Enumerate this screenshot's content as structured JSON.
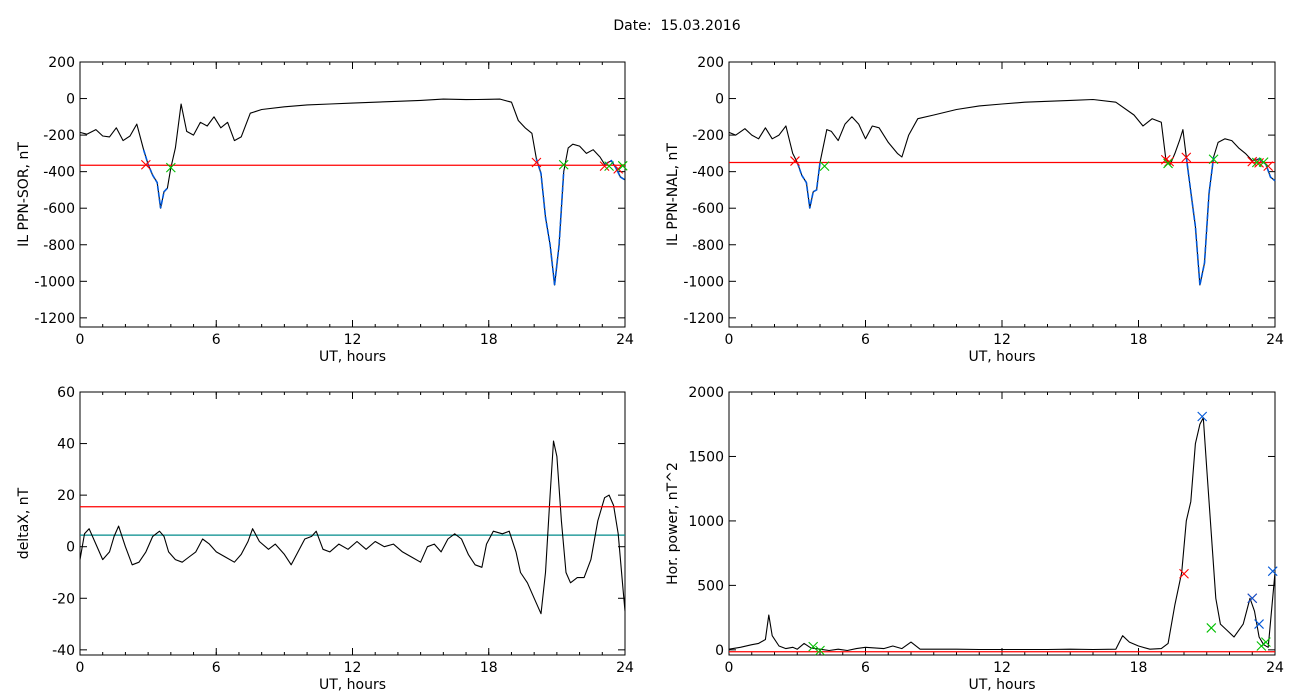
{
  "figure": {
    "date_label": "Date:",
    "date_value": "15.03.2016"
  },
  "colors": {
    "trace": "#000000",
    "threshold": "#ff0000",
    "event": "#0057d8",
    "start_marker": "#ff0000",
    "end_marker": "#00c000",
    "peak_marker": "#0057d8",
    "mean_line": "#008b8b"
  },
  "chart_data": [
    {
      "id": "il_sor",
      "type": "line",
      "xlabel": "UT, hours",
      "ylabel": "IL PPN-SOR, nT",
      "xlim": [
        0,
        24
      ],
      "ylim": [
        -1250,
        200
      ],
      "xticks": [
        "0",
        "6",
        "12",
        "18",
        "24"
      ],
      "yticks": [
        "200",
        "0",
        "-200",
        "-400",
        "-600",
        "-800",
        "-1000",
        "-1200"
      ],
      "threshold": -365,
      "trace": [
        [
          0,
          -185
        ],
        [
          0.3,
          -195
        ],
        [
          0.7,
          -170
        ],
        [
          1.0,
          -205
        ],
        [
          1.3,
          -210
        ],
        [
          1.6,
          -160
        ],
        [
          1.9,
          -230
        ],
        [
          2.2,
          -205
        ],
        [
          2.5,
          -140
        ],
        [
          2.8,
          -280
        ],
        [
          3.0,
          -360
        ],
        [
          3.2,
          -420
        ],
        [
          3.4,
          -460
        ],
        [
          3.55,
          -600
        ],
        [
          3.7,
          -510
        ],
        [
          3.85,
          -490
        ],
        [
          4.0,
          -380
        ],
        [
          4.2,
          -270
        ],
        [
          4.45,
          -30
        ],
        [
          4.7,
          -180
        ],
        [
          5.0,
          -200
        ],
        [
          5.3,
          -130
        ],
        [
          5.6,
          -150
        ],
        [
          5.9,
          -100
        ],
        [
          6.2,
          -160
        ],
        [
          6.5,
          -130
        ],
        [
          6.8,
          -230
        ],
        [
          7.1,
          -210
        ],
        [
          7.5,
          -80
        ],
        [
          8.0,
          -60
        ],
        [
          9,
          -45
        ],
        [
          10,
          -35
        ],
        [
          11,
          -30
        ],
        [
          12,
          -25
        ],
        [
          13,
          -20
        ],
        [
          14,
          -15
        ],
        [
          15,
          -10
        ],
        [
          16,
          -3
        ],
        [
          17,
          -6
        ],
        [
          17.5,
          -5
        ],
        [
          18,
          -4
        ],
        [
          18.5,
          -3
        ],
        [
          19.0,
          -20
        ],
        [
          19.3,
          -120
        ],
        [
          19.6,
          -160
        ],
        [
          19.9,
          -190
        ],
        [
          20.1,
          -330
        ],
        [
          20.3,
          -410
        ],
        [
          20.5,
          -650
        ],
        [
          20.7,
          -800
        ],
        [
          20.9,
          -1020
        ],
        [
          21.1,
          -800
        ],
        [
          21.3,
          -400
        ],
        [
          21.5,
          -270
        ],
        [
          21.7,
          -250
        ],
        [
          22.0,
          -260
        ],
        [
          22.3,
          -300
        ],
        [
          22.6,
          -280
        ],
        [
          22.9,
          -320
        ],
        [
          23.1,
          -360
        ],
        [
          23.4,
          -340
        ],
        [
          23.6,
          -380
        ],
        [
          23.8,
          -430
        ],
        [
          24.0,
          -445
        ]
      ],
      "events": [
        [
          2.8,
          3.85
        ],
        [
          20.1,
          21.3
        ],
        [
          23.1,
          24.0
        ]
      ],
      "start_markers": [
        [
          2.9,
          -362
        ],
        [
          20.1,
          -350
        ],
        [
          23.1,
          -370
        ],
        [
          23.7,
          -385
        ]
      ],
      "end_markers": [
        [
          4.0,
          -378
        ],
        [
          21.3,
          -362
        ],
        [
          23.3,
          -370
        ],
        [
          23.9,
          -368
        ]
      ]
    },
    {
      "id": "il_nal",
      "type": "line",
      "xlabel": "UT, hours",
      "ylabel": "IL PPN-NAL, nT",
      "xlim": [
        0,
        24
      ],
      "ylim": [
        -1250,
        200
      ],
      "xticks": [
        "0",
        "6",
        "12",
        "18",
        "24"
      ],
      "yticks": [
        "200",
        "0",
        "-200",
        "-400",
        "-600",
        "-800",
        "-1000",
        "-1200"
      ],
      "threshold": -350,
      "trace": [
        [
          0,
          -185
        ],
        [
          0.3,
          -200
        ],
        [
          0.7,
          -165
        ],
        [
          1.0,
          -200
        ],
        [
          1.3,
          -220
        ],
        [
          1.6,
          -160
        ],
        [
          1.9,
          -220
        ],
        [
          2.2,
          -200
        ],
        [
          2.5,
          -150
        ],
        [
          2.8,
          -300
        ],
        [
          3.0,
          -350
        ],
        [
          3.2,
          -420
        ],
        [
          3.4,
          -460
        ],
        [
          3.55,
          -600
        ],
        [
          3.7,
          -510
        ],
        [
          3.85,
          -500
        ],
        [
          4.0,
          -350
        ],
        [
          4.3,
          -170
        ],
        [
          4.5,
          -180
        ],
        [
          4.8,
          -230
        ],
        [
          5.1,
          -140
        ],
        [
          5.4,
          -100
        ],
        [
          5.7,
          -140
        ],
        [
          6.0,
          -220
        ],
        [
          6.3,
          -150
        ],
        [
          6.6,
          -160
        ],
        [
          7.0,
          -240
        ],
        [
          7.4,
          -300
        ],
        [
          7.6,
          -320
        ],
        [
          7.9,
          -200
        ],
        [
          8.3,
          -110
        ],
        [
          9,
          -90
        ],
        [
          10,
          -60
        ],
        [
          11,
          -40
        ],
        [
          12,
          -30
        ],
        [
          13,
          -20
        ],
        [
          14,
          -15
        ],
        [
          15,
          -10
        ],
        [
          16,
          -5
        ],
        [
          17,
          -20
        ],
        [
          17.8,
          -90
        ],
        [
          18.2,
          -150
        ],
        [
          18.6,
          -110
        ],
        [
          19.0,
          -130
        ],
        [
          19.2,
          -330
        ],
        [
          19.4,
          -360
        ],
        [
          19.6,
          -300
        ],
        [
          19.8,
          -230
        ],
        [
          19.95,
          -170
        ],
        [
          20.1,
          -320
        ],
        [
          20.3,
          -510
        ],
        [
          20.5,
          -700
        ],
        [
          20.7,
          -1020
        ],
        [
          20.9,
          -900
        ],
        [
          21.1,
          -520
        ],
        [
          21.3,
          -320
        ],
        [
          21.5,
          -240
        ],
        [
          21.8,
          -220
        ],
        [
          22.1,
          -230
        ],
        [
          22.4,
          -270
        ],
        [
          22.7,
          -300
        ],
        [
          23.0,
          -340
        ],
        [
          23.3,
          -330
        ],
        [
          23.6,
          -360
        ],
        [
          23.8,
          -430
        ],
        [
          24.0,
          -450
        ]
      ],
      "events": [
        [
          3.0,
          4.0
        ],
        [
          20.1,
          21.3
        ],
        [
          23.0,
          24.0
        ]
      ],
      "start_markers": [
        [
          2.9,
          -342
        ],
        [
          19.2,
          -335
        ],
        [
          19.35,
          -345
        ],
        [
          20.1,
          -322
        ],
        [
          23.0,
          -345
        ],
        [
          23.3,
          -352
        ],
        [
          23.7,
          -370
        ]
      ],
      "end_markers": [
        [
          4.2,
          -370
        ],
        [
          19.3,
          -355
        ],
        [
          21.3,
          -332
        ],
        [
          23.2,
          -350
        ],
        [
          23.5,
          -348
        ]
      ]
    },
    {
      "id": "deltax",
      "type": "line",
      "xlabel": "UT, hours",
      "ylabel": "deltaX, nT",
      "xlim": [
        0,
        24
      ],
      "ylim": [
        -42,
        60
      ],
      "xticks": [
        "0",
        "6",
        "12",
        "18",
        "24"
      ],
      "yticks": [
        "60",
        "40",
        "20",
        "0",
        "-20",
        "-40"
      ],
      "threshold": 15.5,
      "mean_level": 4.5,
      "trace": [
        [
          0,
          -5
        ],
        [
          0.2,
          5
        ],
        [
          0.4,
          7
        ],
        [
          0.7,
          1
        ],
        [
          1.0,
          -5
        ],
        [
          1.3,
          -2
        ],
        [
          1.5,
          4
        ],
        [
          1.7,
          8
        ],
        [
          2.0,
          0
        ],
        [
          2.3,
          -7
        ],
        [
          2.6,
          -6
        ],
        [
          2.9,
          -2
        ],
        [
          3.2,
          4
        ],
        [
          3.5,
          6
        ],
        [
          3.7,
          4
        ],
        [
          3.9,
          -2
        ],
        [
          4.2,
          -5
        ],
        [
          4.5,
          -6
        ],
        [
          4.8,
          -4
        ],
        [
          5.1,
          -2
        ],
        [
          5.4,
          3
        ],
        [
          5.7,
          1
        ],
        [
          6.0,
          -2
        ],
        [
          6.4,
          -4
        ],
        [
          6.8,
          -6
        ],
        [
          7.1,
          -3
        ],
        [
          7.4,
          2
        ],
        [
          7.6,
          7
        ],
        [
          7.9,
          2
        ],
        [
          8.3,
          -1
        ],
        [
          8.6,
          1
        ],
        [
          9.0,
          -3
        ],
        [
          9.3,
          -7
        ],
        [
          9.6,
          -2
        ],
        [
          9.9,
          3
        ],
        [
          10.2,
          4
        ],
        [
          10.4,
          6
        ],
        [
          10.7,
          -1
        ],
        [
          11.0,
          -2
        ],
        [
          11.4,
          1
        ],
        [
          11.8,
          -1
        ],
        [
          12.2,
          2
        ],
        [
          12.6,
          -1
        ],
        [
          13.0,
          2
        ],
        [
          13.4,
          0
        ],
        [
          13.8,
          1
        ],
        [
          14.2,
          -2
        ],
        [
          14.6,
          -4
        ],
        [
          15.0,
          -6
        ],
        [
          15.3,
          0
        ],
        [
          15.6,
          1
        ],
        [
          15.9,
          -2
        ],
        [
          16.2,
          3
        ],
        [
          16.5,
          5
        ],
        [
          16.8,
          3
        ],
        [
          17.1,
          -3
        ],
        [
          17.4,
          -7
        ],
        [
          17.7,
          -8
        ],
        [
          17.9,
          1
        ],
        [
          18.2,
          6
        ],
        [
          18.6,
          5
        ],
        [
          18.9,
          6
        ],
        [
          19.2,
          -2
        ],
        [
          19.4,
          -10
        ],
        [
          19.7,
          -14
        ],
        [
          20.0,
          -20
        ],
        [
          20.3,
          -26
        ],
        [
          20.5,
          -10
        ],
        [
          20.7,
          20
        ],
        [
          20.85,
          41
        ],
        [
          21.0,
          35
        ],
        [
          21.2,
          10
        ],
        [
          21.4,
          -10
        ],
        [
          21.6,
          -14
        ],
        [
          21.9,
          -12
        ],
        [
          22.2,
          -12
        ],
        [
          22.5,
          -5
        ],
        [
          22.8,
          10
        ],
        [
          23.1,
          19
        ],
        [
          23.3,
          20
        ],
        [
          23.5,
          16
        ],
        [
          23.7,
          5
        ],
        [
          23.9,
          -15
        ],
        [
          24.0,
          -25
        ]
      ]
    },
    {
      "id": "hor_power",
      "type": "line",
      "xlabel": "UT, hours",
      "ylabel": "Hor. power, nT^2",
      "xlim": [
        0,
        24
      ],
      "ylim": [
        -40,
        2000
      ],
      "xticks": [
        "0",
        "6",
        "12",
        "18",
        "24"
      ],
      "yticks": [
        "2000",
        "1500",
        "1000",
        "500",
        "0"
      ],
      "threshold": -15,
      "trace": [
        [
          0,
          5
        ],
        [
          0.5,
          20
        ],
        [
          1.0,
          40
        ],
        [
          1.3,
          50
        ],
        [
          1.6,
          80
        ],
        [
          1.75,
          270
        ],
        [
          1.9,
          110
        ],
        [
          2.2,
          30
        ],
        [
          2.5,
          10
        ],
        [
          2.8,
          20
        ],
        [
          3.0,
          5
        ],
        [
          3.3,
          50
        ],
        [
          3.6,
          15
        ],
        [
          4.0,
          5
        ],
        [
          4.4,
          -5
        ],
        [
          4.8,
          5
        ],
        [
          5.2,
          -5
        ],
        [
          5.6,
          10
        ],
        [
          6.0,
          20
        ],
        [
          6.4,
          15
        ],
        [
          6.8,
          10
        ],
        [
          7.2,
          30
        ],
        [
          7.6,
          10
        ],
        [
          8.0,
          60
        ],
        [
          8.4,
          5
        ],
        [
          8.8,
          5
        ],
        [
          9,
          5
        ],
        [
          10,
          5
        ],
        [
          11,
          3
        ],
        [
          12,
          3
        ],
        [
          13,
          3
        ],
        [
          14,
          3
        ],
        [
          15,
          5
        ],
        [
          16,
          3
        ],
        [
          17,
          5
        ],
        [
          17.3,
          110
        ],
        [
          17.6,
          60
        ],
        [
          18,
          30
        ],
        [
          18.5,
          5
        ],
        [
          19.0,
          10
        ],
        [
          19.3,
          50
        ],
        [
          19.6,
          350
        ],
        [
          19.9,
          600
        ],
        [
          20.1,
          1000
        ],
        [
          20.3,
          1150
        ],
        [
          20.5,
          1600
        ],
        [
          20.7,
          1750
        ],
        [
          20.85,
          1800
        ],
        [
          21.0,
          1400
        ],
        [
          21.2,
          900
        ],
        [
          21.4,
          400
        ],
        [
          21.6,
          200
        ],
        [
          21.9,
          150
        ],
        [
          22.2,
          100
        ],
        [
          22.6,
          200
        ],
        [
          22.9,
          400
        ],
        [
          23.1,
          300
        ],
        [
          23.3,
          100
        ],
        [
          23.5,
          40
        ],
        [
          23.7,
          20
        ],
        [
          24.0,
          600
        ]
      ],
      "start_markers": [
        [
          20.0,
          590
        ],
        [
          23.0,
          400
        ]
      ],
      "end_markers": [
        [
          3.7,
          25
        ],
        [
          4.0,
          -5
        ],
        [
          21.2,
          170
        ],
        [
          23.4,
          30
        ],
        [
          23.6,
          60
        ]
      ],
      "peak_markers": [
        [
          20.8,
          1810
        ],
        [
          23.0,
          400
        ],
        [
          23.3,
          200
        ],
        [
          23.9,
          610
        ]
      ]
    }
  ]
}
